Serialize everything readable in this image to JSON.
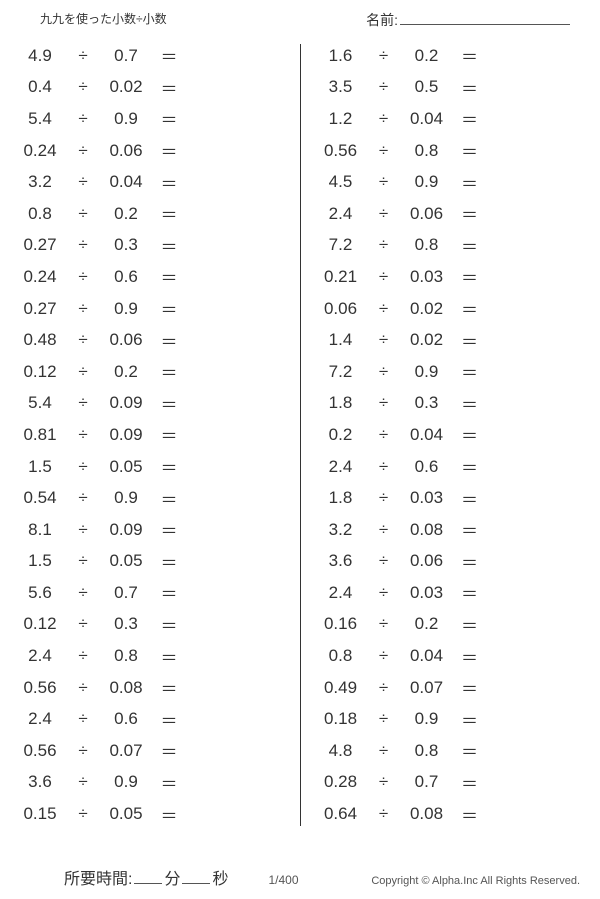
{
  "header": {
    "title": "九九を使った小数÷小数",
    "name_label": "名前:"
  },
  "symbols": {
    "divide": "÷",
    "equals": "＝"
  },
  "worksheet": {
    "left": [
      {
        "a": "4.9",
        "b": "0.7"
      },
      {
        "a": "0.4",
        "b": "0.02"
      },
      {
        "a": "5.4",
        "b": "0.9"
      },
      {
        "a": "0.24",
        "b": "0.06"
      },
      {
        "a": "3.2",
        "b": "0.04"
      },
      {
        "a": "0.8",
        "b": "0.2"
      },
      {
        "a": "0.27",
        "b": "0.3"
      },
      {
        "a": "0.24",
        "b": "0.6"
      },
      {
        "a": "0.27",
        "b": "0.9"
      },
      {
        "a": "0.48",
        "b": "0.06"
      },
      {
        "a": "0.12",
        "b": "0.2"
      },
      {
        "a": "5.4",
        "b": "0.09"
      },
      {
        "a": "0.81",
        "b": "0.09"
      },
      {
        "a": "1.5",
        "b": "0.05"
      },
      {
        "a": "0.54",
        "b": "0.9"
      },
      {
        "a": "8.1",
        "b": "0.09"
      },
      {
        "a": "1.5",
        "b": "0.05"
      },
      {
        "a": "5.6",
        "b": "0.7"
      },
      {
        "a": "0.12",
        "b": "0.3"
      },
      {
        "a": "2.4",
        "b": "0.8"
      },
      {
        "a": "0.56",
        "b": "0.08"
      },
      {
        "a": "2.4",
        "b": "0.6"
      },
      {
        "a": "0.56",
        "b": "0.07"
      },
      {
        "a": "3.6",
        "b": "0.9"
      },
      {
        "a": "0.15",
        "b": "0.05"
      }
    ],
    "right": [
      {
        "a": "1.6",
        "b": "0.2"
      },
      {
        "a": "3.5",
        "b": "0.5"
      },
      {
        "a": "1.2",
        "b": "0.04"
      },
      {
        "a": "0.56",
        "b": "0.8"
      },
      {
        "a": "4.5",
        "b": "0.9"
      },
      {
        "a": "2.4",
        "b": "0.06"
      },
      {
        "a": "7.2",
        "b": "0.8"
      },
      {
        "a": "0.21",
        "b": "0.03"
      },
      {
        "a": "0.06",
        "b": "0.02"
      },
      {
        "a": "1.4",
        "b": "0.02"
      },
      {
        "a": "7.2",
        "b": "0.9"
      },
      {
        "a": "1.8",
        "b": "0.3"
      },
      {
        "a": "0.2",
        "b": "0.04"
      },
      {
        "a": "2.4",
        "b": "0.6"
      },
      {
        "a": "1.8",
        "b": "0.03"
      },
      {
        "a": "3.2",
        "b": "0.08"
      },
      {
        "a": "3.6",
        "b": "0.06"
      },
      {
        "a": "2.4",
        "b": "0.03"
      },
      {
        "a": "0.16",
        "b": "0.2"
      },
      {
        "a": "0.8",
        "b": "0.04"
      },
      {
        "a": "0.49",
        "b": "0.07"
      },
      {
        "a": "0.18",
        "b": "0.9"
      },
      {
        "a": "4.8",
        "b": "0.8"
      },
      {
        "a": "0.28",
        "b": "0.7"
      },
      {
        "a": "0.64",
        "b": "0.08"
      }
    ]
  },
  "footer": {
    "time_label": "所要時間:",
    "minutes_unit": "分",
    "seconds_unit": "秒",
    "page": "1/400",
    "copyright": "Copyright © Alpha.Inc All Rights Reserved."
  },
  "colors": {
    "text": "#333333",
    "background": "#ffffff",
    "line": "#555555"
  }
}
